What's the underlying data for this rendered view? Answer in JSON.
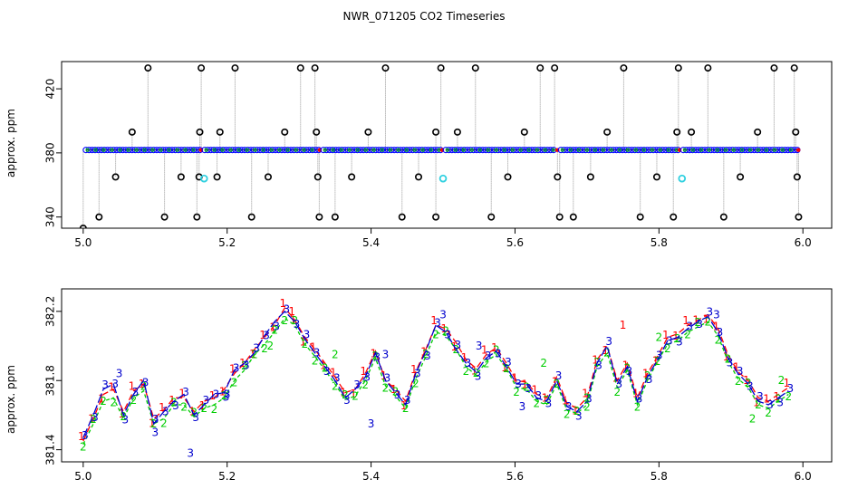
{
  "title": "NWR_071205  CO2 Timeseries",
  "chart_data": [
    {
      "type": "scatter",
      "ylabel": "approx. ppm",
      "xlim": [
        4.97,
        6.04
      ],
      "ylim": [
        333,
        437
      ],
      "xticks": [
        "5.0",
        "5.2",
        "5.4",
        "5.6",
        "5.8",
        "6.0"
      ],
      "yticks": [
        "340",
        "380",
        "420"
      ],
      "baseline_ppm": 381.8,
      "baseline_segments": [
        [
          5.0,
          5.165
        ],
        [
          5.165,
          5.33
        ],
        [
          5.33,
          5.5
        ],
        [
          5.5,
          5.66
        ],
        [
          5.66,
          5.83
        ],
        [
          5.83,
          5.995
        ]
      ],
      "spikes": [
        {
          "x": 5.0,
          "y": 333
        },
        {
          "x": 5.022,
          "y": 340
        },
        {
          "x": 5.045,
          "y": 365
        },
        {
          "x": 5.068,
          "y": 393
        },
        {
          "x": 5.09,
          "y": 433
        },
        {
          "x": 5.113,
          "y": 340
        },
        {
          "x": 5.136,
          "y": 365
        },
        {
          "x": 5.158,
          "y": 340
        },
        {
          "x": 5.161,
          "y": 365
        },
        {
          "x": 5.162,
          "y": 393
        },
        {
          "x": 5.164,
          "y": 433
        },
        {
          "x": 5.186,
          "y": 365
        },
        {
          "x": 5.19,
          "y": 393
        },
        {
          "x": 5.211,
          "y": 433
        },
        {
          "x": 5.234,
          "y": 340
        },
        {
          "x": 5.257,
          "y": 365
        },
        {
          "x": 5.28,
          "y": 393
        },
        {
          "x": 5.302,
          "y": 433
        },
        {
          "x": 5.322,
          "y": 433
        },
        {
          "x": 5.324,
          "y": 393
        },
        {
          "x": 5.326,
          "y": 365
        },
        {
          "x": 5.328,
          "y": 340
        },
        {
          "x": 5.35,
          "y": 340
        },
        {
          "x": 5.373,
          "y": 365
        },
        {
          "x": 5.396,
          "y": 393
        },
        {
          "x": 5.42,
          "y": 433
        },
        {
          "x": 5.443,
          "y": 340
        },
        {
          "x": 5.466,
          "y": 365
        },
        {
          "x": 5.49,
          "y": 393
        },
        {
          "x": 5.49,
          "y": 340
        },
        {
          "x": 5.497,
          "y": 433
        },
        {
          "x": 5.52,
          "y": 393
        },
        {
          "x": 5.545,
          "y": 433
        },
        {
          "x": 5.567,
          "y": 340
        },
        {
          "x": 5.59,
          "y": 365
        },
        {
          "x": 5.613,
          "y": 393
        },
        {
          "x": 5.635,
          "y": 433
        },
        {
          "x": 5.655,
          "y": 433
        },
        {
          "x": 5.659,
          "y": 365
        },
        {
          "x": 5.662,
          "y": 340
        },
        {
          "x": 5.681,
          "y": 340
        },
        {
          "x": 5.705,
          "y": 365
        },
        {
          "x": 5.728,
          "y": 393
        },
        {
          "x": 5.751,
          "y": 433
        },
        {
          "x": 5.774,
          "y": 340
        },
        {
          "x": 5.797,
          "y": 365
        },
        {
          "x": 5.82,
          "y": 340
        },
        {
          "x": 5.825,
          "y": 393
        },
        {
          "x": 5.827,
          "y": 433
        },
        {
          "x": 5.845,
          "y": 393
        },
        {
          "x": 5.868,
          "y": 433
        },
        {
          "x": 5.89,
          "y": 340
        },
        {
          "x": 5.913,
          "y": 365
        },
        {
          "x": 5.937,
          "y": 393
        },
        {
          "x": 5.96,
          "y": 433
        },
        {
          "x": 5.988,
          "y": 433
        },
        {
          "x": 5.99,
          "y": 393
        },
        {
          "x": 5.992,
          "y": 365
        },
        {
          "x": 5.994,
          "y": 340
        }
      ],
      "cyan_points": [
        {
          "x": 5.168,
          "y": 364
        },
        {
          "x": 5.5,
          "y": 364
        },
        {
          "x": 5.832,
          "y": 364
        }
      ],
      "colors": {
        "black": "#000000",
        "blue": "#0000ff",
        "green": "#00cd00",
        "cyan": "#2fd0e0",
        "red": "#ff0000",
        "gray": "#999999"
      }
    },
    {
      "type": "line",
      "ylabel": "approx. ppm",
      "xlim": [
        4.97,
        6.04
      ],
      "ylim": [
        381.33,
        382.33
      ],
      "xticks": [
        "5.0",
        "5.2",
        "5.4",
        "5.6",
        "5.8",
        "6.0"
      ],
      "yticks": [
        "381.4",
        "381.8",
        "382.2"
      ],
      "x_start": 5.0,
      "x_end": 5.98,
      "series": [
        {
          "name": "1",
          "color": "#ff0000",
          "dash": "7,4",
          "offset": 0.04,
          "values": [
            381.45,
            381.58,
            381.72,
            381.75,
            381.62,
            381.74,
            381.78,
            381.58,
            381.63,
            381.7,
            381.7,
            381.62,
            381.68,
            381.7,
            381.75,
            381.84,
            381.9,
            381.98,
            382.05,
            382.12,
            382.22,
            382.15,
            382.05,
            381.98,
            381.9,
            381.82,
            381.73,
            381.75,
            381.84,
            381.97,
            381.8,
            381.75,
            381.68,
            381.85,
            381.98,
            382.12,
            382.1,
            382.02,
            381.92,
            381.87,
            381.95,
            381.99,
            381.9,
            381.8,
            381.79,
            381.72,
            381.7,
            381.82,
            381.67,
            381.64,
            381.7,
            381.92,
            382.0,
            381.8,
            381.9,
            381.7,
            381.84,
            381.94,
            382.05,
            382.07,
            382.12,
            382.15,
            382.18,
            382.1,
            381.95,
            381.85,
            381.8,
            381.7,
            381.68,
            381.72,
            381.76
          ]
        },
        {
          "name": "2",
          "color": "#00cd00",
          "dash": "4,3",
          "offset": -0.04,
          "values": [
            381.43,
            381.55,
            381.68,
            381.7,
            381.58,
            381.7,
            381.74,
            381.55,
            381.58,
            381.66,
            381.66,
            381.59,
            381.64,
            381.66,
            381.7,
            381.8,
            381.86,
            381.95,
            382.01,
            382.08,
            382.16,
            382.12,
            382.01,
            381.94,
            381.86,
            381.78,
            381.69,
            381.71,
            381.8,
            381.93,
            381.77,
            381.71,
            381.64,
            381.81,
            381.94,
            382.08,
            382.06,
            381.98,
            381.88,
            381.83,
            381.91,
            381.95,
            381.87,
            381.76,
            381.75,
            381.68,
            381.66,
            381.78,
            381.63,
            381.61,
            381.66,
            381.88,
            381.96,
            381.76,
            381.86,
            381.66,
            381.8,
            381.91,
            382.01,
            382.03,
            382.08,
            382.11,
            382.14,
            382.06,
            381.91,
            381.81,
            381.76,
            381.66,
            381.64,
            381.68,
            381.72
          ]
        },
        {
          "name": "3",
          "color": "#0000cd",
          "dash": "11,3",
          "offset": 0,
          "values": [
            381.47,
            381.6,
            381.75,
            381.78,
            381.6,
            381.72,
            381.8,
            381.55,
            381.62,
            381.68,
            381.72,
            381.6,
            381.66,
            381.72,
            381.73,
            381.86,
            381.9,
            381.96,
            382.06,
            382.14,
            382.2,
            382.14,
            382.04,
            381.96,
            381.88,
            381.8,
            381.7,
            381.75,
            381.82,
            381.96,
            381.8,
            381.73,
            381.66,
            381.84,
            381.97,
            382.12,
            382.08,
            381.98,
            381.9,
            381.85,
            381.93,
            381.97,
            381.88,
            381.78,
            381.78,
            381.7,
            381.68,
            381.8,
            381.65,
            381.62,
            381.68,
            381.9,
            382.0,
            381.78,
            381.88,
            381.68,
            381.82,
            381.92,
            382.03,
            382.05,
            382.1,
            382.14,
            382.17,
            382.08,
            381.93,
            381.84,
            381.78,
            381.68,
            381.66,
            381.7,
            381.74
          ]
        }
      ],
      "markers": [
        {
          "x": 5.05,
          "y": 381.84,
          "label": "3"
        },
        {
          "x": 5.1,
          "y": 381.5,
          "label": "3"
        },
        {
          "x": 5.149,
          "y": 381.38,
          "label": "3"
        },
        {
          "x": 5.2,
          "y": 381.72,
          "label": "3"
        },
        {
          "x": 5.26,
          "y": 382.0,
          "label": "2"
        },
        {
          "x": 5.29,
          "y": 382.2,
          "label": "1"
        },
        {
          "x": 5.35,
          "y": 381.95,
          "label": "2"
        },
        {
          "x": 5.4,
          "y": 381.55,
          "label": "3"
        },
        {
          "x": 5.42,
          "y": 381.95,
          "label": "3"
        },
        {
          "x": 5.5,
          "y": 382.18,
          "label": "3"
        },
        {
          "x": 5.55,
          "y": 382.0,
          "label": "3"
        },
        {
          "x": 5.61,
          "y": 381.65,
          "label": "3"
        },
        {
          "x": 5.64,
          "y": 381.9,
          "label": "2"
        },
        {
          "x": 5.7,
          "y": 381.7,
          "label": "2"
        },
        {
          "x": 5.75,
          "y": 382.12,
          "label": "1"
        },
        {
          "x": 5.8,
          "y": 382.05,
          "label": "2"
        },
        {
          "x": 5.88,
          "y": 382.18,
          "label": "3"
        },
        {
          "x": 5.93,
          "y": 381.58,
          "label": "2"
        },
        {
          "x": 5.97,
          "y": 381.8,
          "label": "2"
        }
      ]
    }
  ]
}
